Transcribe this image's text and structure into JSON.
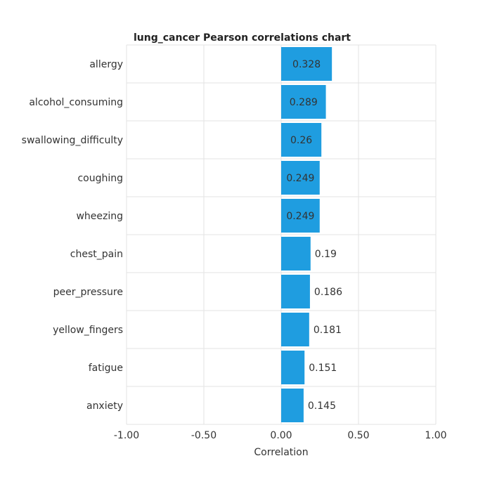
{
  "chart_data": {
    "type": "bar",
    "orientation": "horizontal",
    "title": "lung_cancer Pearson correlations chart",
    "xlabel": "Correlation",
    "ylabel": "",
    "xlim": [
      -1.0,
      1.0
    ],
    "xticks": [
      "-1.00",
      "-0.50",
      "0.00",
      "0.50",
      "1.00"
    ],
    "xtick_values": [
      -1.0,
      -0.5,
      0.0,
      0.5,
      1.0
    ],
    "grid": true,
    "legend": "none",
    "categories": [
      "allergy",
      "alcohol_consuming",
      "swallowing_difficulty",
      "coughing",
      "wheezing",
      "chest_pain",
      "peer_pressure",
      "yellow_fingers",
      "fatigue",
      "anxiety"
    ],
    "values": [
      0.328,
      0.289,
      0.26,
      0.249,
      0.249,
      0.19,
      0.186,
      0.181,
      0.151,
      0.145
    ],
    "value_labels": [
      "0.328",
      "0.289",
      "0.26",
      "0.249",
      "0.249",
      "0.19",
      "0.186",
      "0.181",
      "0.151",
      "0.145"
    ],
    "bar_color": "#1f9de0"
  }
}
